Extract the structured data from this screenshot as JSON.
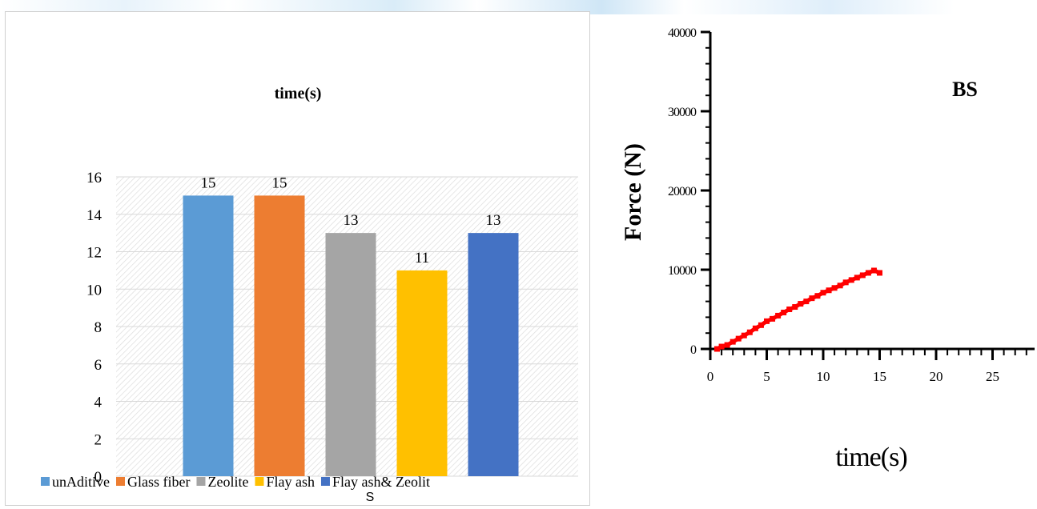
{
  "chart_data": [
    {
      "type": "bar",
      "title": "time(s)",
      "categories": [
        "unAditive",
        "Glass fiber",
        "Zeolite",
        "Flay ash",
        "Flay ash& Zeolit"
      ],
      "values": [
        15,
        15,
        13,
        11,
        13
      ],
      "colors": [
        "#5b9bd5",
        "#ed7d31",
        "#a5a5a5",
        "#ffc000",
        "#4472c4"
      ],
      "ylim": [
        0,
        16
      ],
      "yticks": [
        "0",
        "2",
        "4",
        "6",
        "8",
        "10",
        "12",
        "14",
        "16"
      ],
      "legend_placement": "bottom",
      "legend_continuation": "S",
      "grid": true,
      "data_labels": true
    },
    {
      "type": "line",
      "annotation": "BS",
      "xlabel": "time(s)",
      "ylabel": "Force (N)",
      "xlim": [
        0,
        28
      ],
      "ylim": [
        0,
        40000
      ],
      "xticks": [
        "0",
        "5",
        "10",
        "15",
        "20",
        "25"
      ],
      "yticks": [
        "0",
        "10000",
        "20000",
        "30000",
        "40000"
      ],
      "line_color": "#ff0000",
      "grid": false,
      "series": [
        {
          "x": [
            0.6,
            1,
            1.5,
            2,
            2.5,
            3,
            3.5,
            4,
            4.5,
            5,
            5.5,
            6,
            6.5,
            7,
            7.5,
            8,
            8.5,
            9,
            9.5,
            10,
            10.5,
            11,
            11.5,
            12,
            12.5,
            13,
            13.5,
            14,
            14.5,
            15
          ],
          "y": [
            0,
            300,
            500,
            900,
            1300,
            1700,
            2100,
            2600,
            3000,
            3500,
            3800,
            4200,
            4600,
            5000,
            5300,
            5700,
            6000,
            6400,
            6700,
            7100,
            7400,
            7700,
            8000,
            8400,
            8700,
            9000,
            9300,
            9600,
            9900,
            9600
          ]
        }
      ]
    }
  ]
}
